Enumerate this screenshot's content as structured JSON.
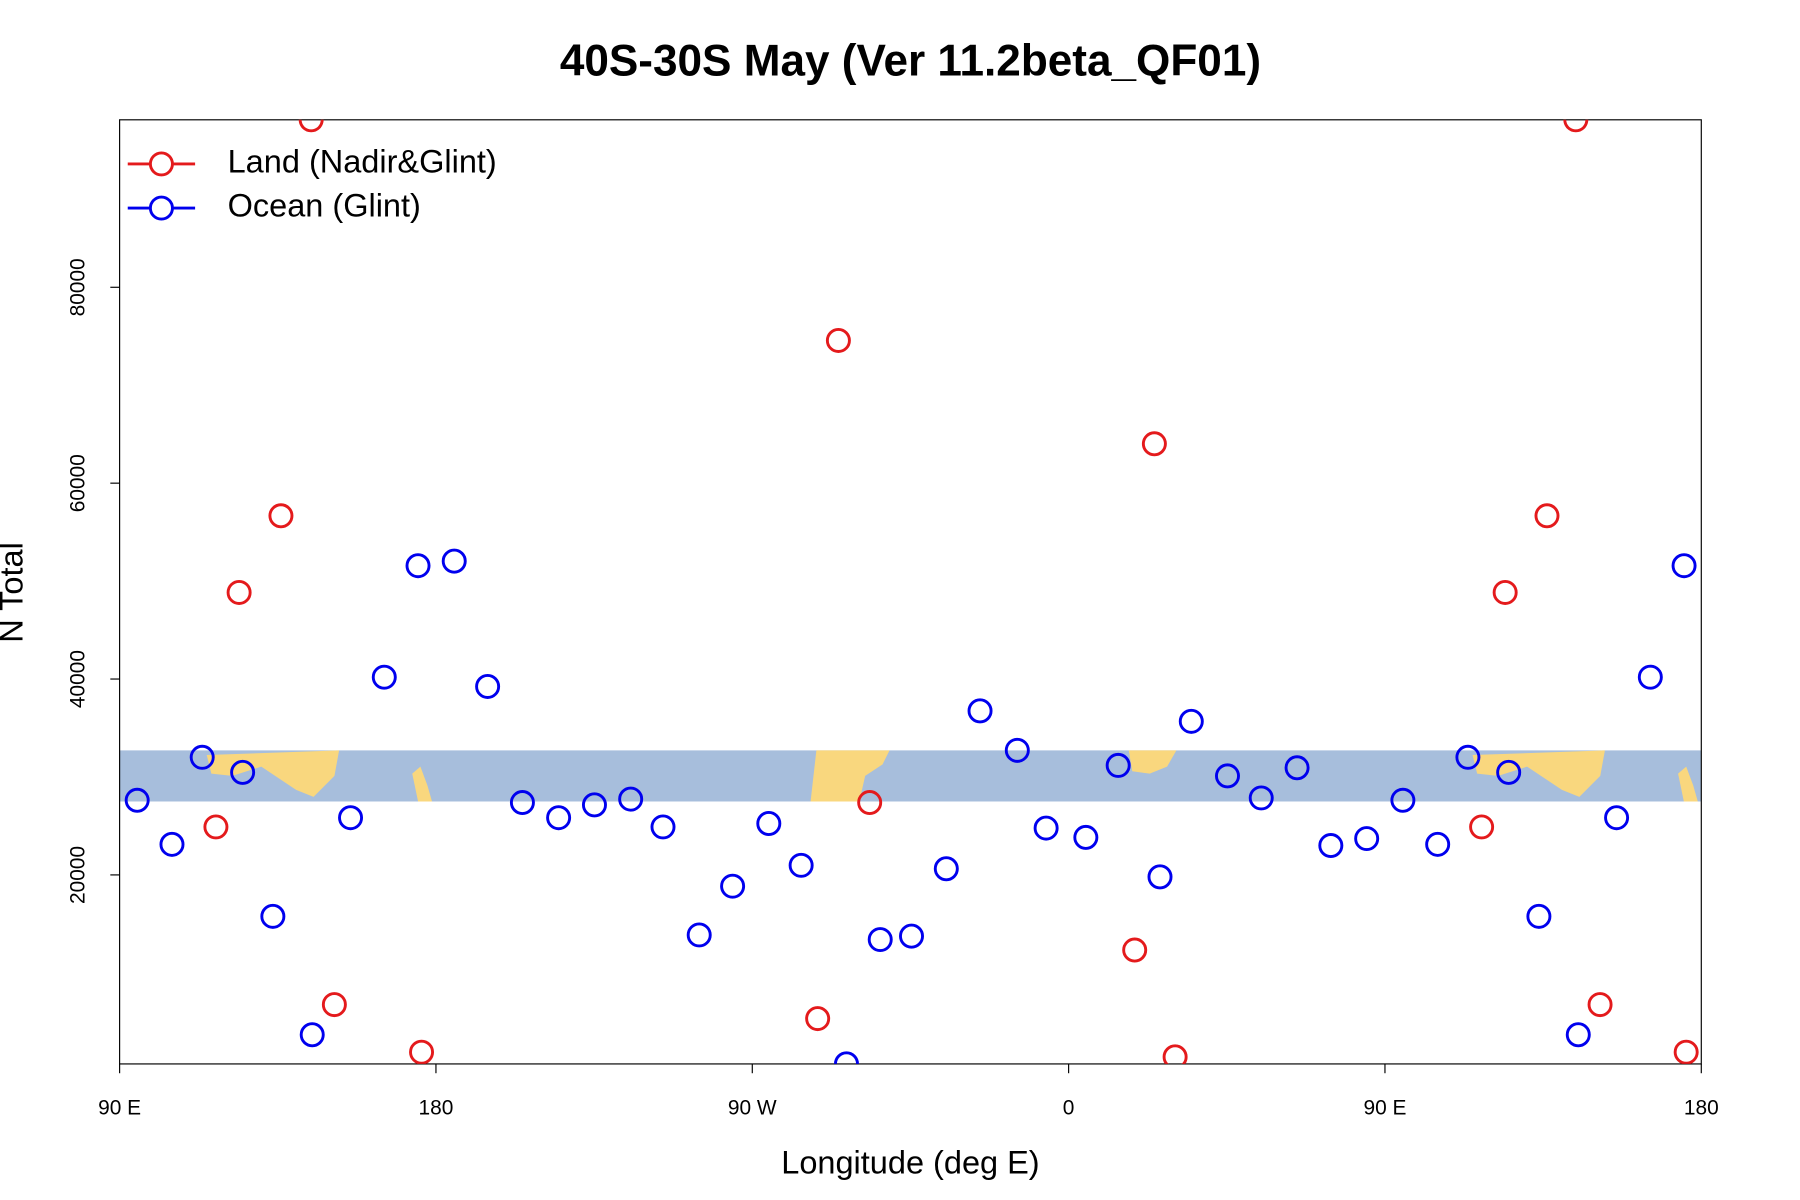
{
  "chart_data": {
    "type": "scatter",
    "title": "40S-30S May (Ver 11.2beta_QF01)",
    "x_label": "Longitude (deg E)",
    "y_label": "N Total",
    "xlim": [
      90,
      540
    ],
    "ylim": [
      700,
      97100
    ],
    "xticks": [
      {
        "value": 90,
        "label": "90 E"
      },
      180,
      {
        "value": 270,
        "label": "90 W"
      },
      {
        "value": 360,
        "label": "0"
      },
      {
        "value": 450,
        "label": "90 E"
      },
      {
        "value": 540,
        "label": "180"
      }
    ],
    "yticks": [
      20000,
      40000,
      60000,
      80000
    ],
    "legend": "top-left",
    "series": [
      {
        "name": "Land (Nadir&Glint)",
        "color": "#e41a1c",
        "x": [
          144.5,
          135.9,
          124.0,
          117.4,
          151.1,
          175.9,
          294.5,
          303.4,
          288.6,
          384.4,
          378.8,
          390.3,
          504.3,
          496.1,
          484.2,
          477.5,
          511.2,
          535.7
        ],
        "values": [
          97100,
          56670,
          48840,
          24900,
          6760,
          1900,
          74570,
          27390,
          5330,
          64020,
          12330,
          1420,
          97100,
          56670,
          48840,
          24900,
          6760,
          1900
        ]
      },
      {
        "name": "Ocean (Glint)",
        "color": "#0000ee",
        "x": [
          95.0,
          104.9,
          113.5,
          125.0,
          133.6,
          144.8,
          155.7,
          165.3,
          174.9,
          185.2,
          194.7,
          204.6,
          214.9,
          225.1,
          235.4,
          244.6,
          254.9,
          264.4,
          274.7,
          283.9,
          296.8,
          306.4,
          315.3,
          325.2,
          334.8,
          345.4,
          353.6,
          364.9,
          374.1,
          386.0,
          394.9,
          405.2,
          414.8,
          425.0,
          434.6,
          444.8,
          455.1,
          465.0,
          473.6,
          485.2,
          493.8,
          505.0,
          515.9,
          525.5,
          535.1
        ],
        "values": [
          27620,
          23120,
          32010,
          30470,
          15770,
          3680,
          25840,
          40190,
          51570,
          52040,
          39240,
          27390,
          25840,
          27150,
          27740,
          24900,
          13870,
          18850,
          25250,
          20980,
          710,
          13400,
          13750,
          20630,
          36750,
          32720,
          24780,
          23830,
          31180,
          19800,
          35680,
          30110,
          27860,
          30940,
          23000,
          23710,
          27620,
          23120,
          32010,
          30470,
          15770,
          3680,
          25840,
          40190,
          51570
        ]
      }
    ]
  }
}
